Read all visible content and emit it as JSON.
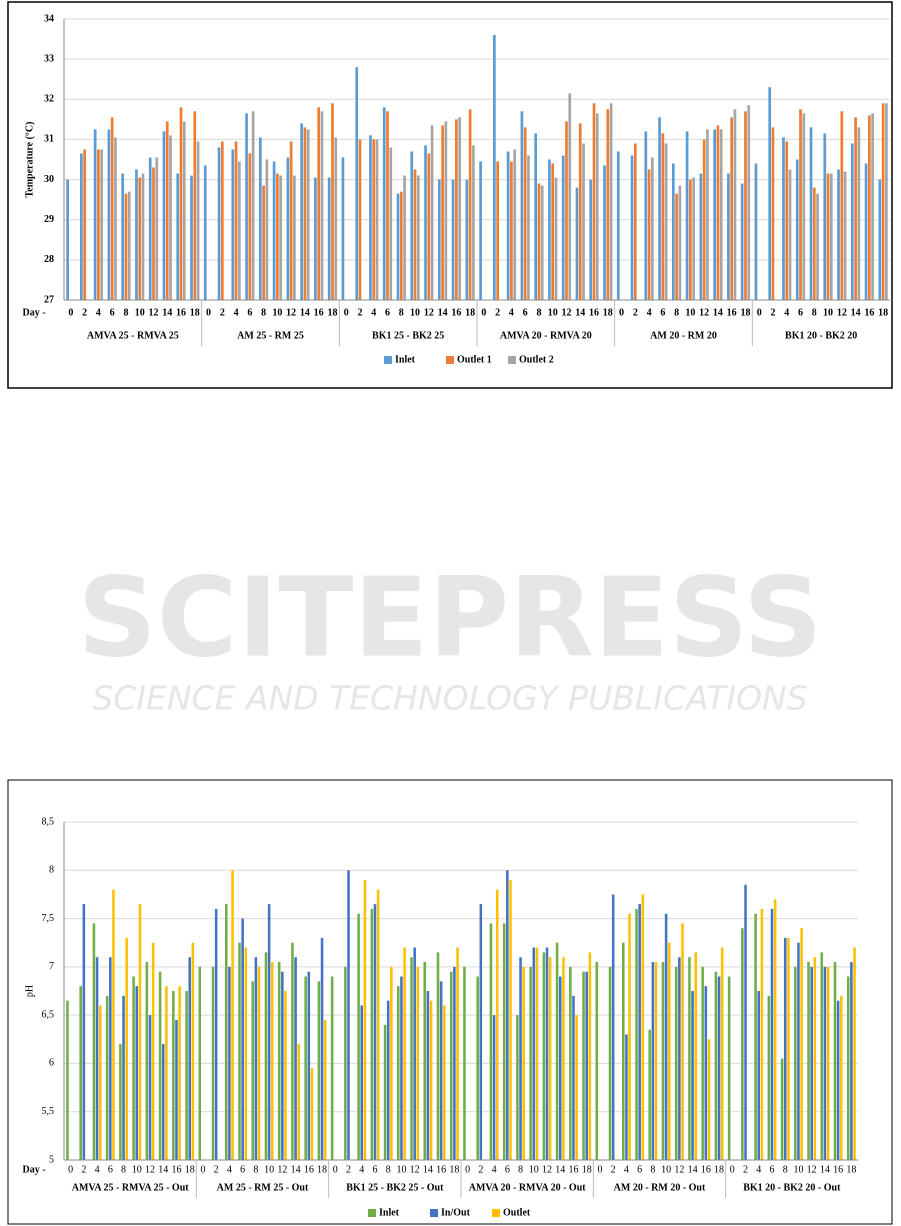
{
  "chart_data": [
    {
      "type": "bar",
      "ylabel": "Temperature (°C)",
      "x_prefix": "Day -",
      "categories": [
        "0",
        "2",
        "4",
        "6",
        "8",
        "10",
        "12",
        "14",
        "16",
        "18",
        "0",
        "2",
        "4",
        "6",
        "8",
        "10",
        "12",
        "14",
        "16",
        "18",
        "0",
        "2",
        "4",
        "6",
        "8",
        "10",
        "12",
        "14",
        "16",
        "18",
        "0",
        "2",
        "4",
        "6",
        "8",
        "10",
        "12",
        "14",
        "16",
        "18",
        "0",
        "2",
        "4",
        "6",
        "8",
        "10",
        "12",
        "14",
        "16",
        "18",
        "0",
        "2",
        "4",
        "6",
        "8",
        "10",
        "12",
        "14",
        "16",
        "18"
      ],
      "groups": [
        "AMVA 25 - RMVA 25",
        "AM 25 - RM 25",
        "BK1 25 - BK2 25",
        "AMVA 20 - RMVA 20",
        "AM 20 - RM 20",
        "BK1 20 - BK2 20"
      ],
      "series": [
        {
          "name": "Inlet",
          "color": "#5b9bd5",
          "values": [
            30.0,
            30.65,
            31.25,
            31.25,
            30.15,
            30.25,
            30.55,
            31.2,
            30.15,
            30.1,
            30.35,
            30.8,
            30.75,
            31.65,
            31.05,
            30.45,
            30.55,
            31.4,
            30.05,
            30.05,
            30.55,
            32.8,
            31.1,
            31.8,
            29.65,
            30.7,
            30.85,
            30.0,
            30.0,
            30.0,
            30.45,
            33.6,
            30.7,
            31.7,
            31.15,
            30.5,
            30.6,
            29.8,
            30.0,
            30.35,
            30.7,
            30.6,
            31.2,
            31.55,
            30.4,
            31.2,
            30.15,
            31.25,
            30.15,
            29.9,
            30.4,
            32.3,
            31.05,
            30.5,
            31.3,
            31.15,
            30.25,
            30.9,
            30.4,
            30.0
          ]
        },
        {
          "name": "Outlet 1",
          "color": "#ed7d31",
          "values": [
            null,
            30.75,
            30.75,
            31.55,
            29.65,
            30.05,
            30.3,
            31.45,
            31.8,
            31.7,
            null,
            30.95,
            30.95,
            30.65,
            29.85,
            30.15,
            30.95,
            31.3,
            31.8,
            31.9,
            null,
            31.0,
            31.0,
            31.7,
            29.7,
            30.25,
            30.65,
            31.35,
            31.5,
            31.75,
            null,
            30.45,
            30.45,
            31.3,
            29.9,
            30.4,
            31.45,
            31.4,
            31.9,
            31.75,
            null,
            30.9,
            30.25,
            31.15,
            29.65,
            30.0,
            31.0,
            31.35,
            31.55,
            31.7,
            null,
            31.3,
            30.95,
            31.75,
            29.8,
            30.15,
            31.7,
            31.55,
            31.6,
            31.9
          ]
        },
        {
          "name": "Outlet 2",
          "color": "#a5a5a5",
          "values": [
            null,
            null,
            30.75,
            31.05,
            29.7,
            30.15,
            30.55,
            31.1,
            31.45,
            30.95,
            null,
            null,
            30.45,
            31.7,
            30.5,
            30.1,
            30.1,
            31.25,
            31.7,
            31.05,
            null,
            null,
            31.0,
            30.8,
            30.1,
            30.1,
            31.35,
            31.45,
            31.55,
            30.85,
            null,
            null,
            30.75,
            30.6,
            29.85,
            30.05,
            32.15,
            30.9,
            31.65,
            31.9,
            null,
            null,
            30.55,
            30.9,
            29.85,
            30.05,
            31.25,
            31.25,
            31.75,
            31.85,
            null,
            null,
            30.25,
            31.65,
            29.65,
            30.15,
            30.2,
            31.3,
            31.65,
            31.9
          ]
        }
      ],
      "ylim": [
        27,
        34
      ],
      "yticks": [
        27,
        28,
        29,
        30,
        31,
        32,
        33,
        34
      ],
      "grid": true,
      "legend": "bottom"
    },
    {
      "type": "bar",
      "ylabel": "pH",
      "x_prefix": "Day -",
      "categories": [
        "0",
        "2",
        "4",
        "6",
        "8",
        "10",
        "12",
        "14",
        "16",
        "18",
        "0",
        "2",
        "4",
        "6",
        "8",
        "10",
        "12",
        "14",
        "16",
        "18",
        "0",
        "2",
        "4",
        "6",
        "8",
        "10",
        "12",
        "14",
        "16",
        "18",
        "0",
        "2",
        "4",
        "6",
        "8",
        "10",
        "12",
        "14",
        "16",
        "18",
        "0",
        "2",
        "4",
        "6",
        "8",
        "10",
        "12",
        "14",
        "16",
        "18",
        "0",
        "2",
        "4",
        "6",
        "8",
        "10",
        "12",
        "14",
        "16",
        "18"
      ],
      "groups": [
        "AMVA 25 - RMVA 25 - Out",
        "AM 25 - RM 25 - Out",
        "BK1 25 - BK2 25 - Out",
        "AMVA 20 - RMVA 20 - Out",
        "AM 20 - RM 20 - Out",
        "BK1 20 - BK2 20 - Out"
      ],
      "series": [
        {
          "name": "Inlet",
          "color": "#70ad47",
          "values": [
            6.65,
            6.8,
            7.45,
            6.7,
            6.2,
            6.9,
            7.05,
            6.95,
            6.75,
            6.75,
            7.0,
            7.0,
            7.65,
            7.25,
            6.85,
            7.15,
            7.05,
            7.25,
            6.9,
            6.85,
            6.9,
            7.0,
            7.55,
            7.6,
            6.4,
            6.8,
            7.1,
            7.05,
            7.15,
            6.95,
            7.0,
            6.9,
            7.45,
            7.45,
            6.5,
            7.0,
            7.15,
            7.25,
            7.0,
            6.95,
            7.05,
            7.0,
            7.25,
            7.6,
            6.35,
            7.05,
            7.0,
            7.1,
            7.0,
            6.95,
            6.9,
            7.4,
            7.55,
            6.7,
            6.05,
            7.0,
            7.05,
            7.15,
            7.05,
            6.9
          ]
        },
        {
          "name": "In/Out",
          "color": "#4472c4",
          "values": [
            null,
            7.65,
            7.1,
            7.1,
            6.7,
            6.8,
            6.5,
            6.2,
            6.45,
            7.1,
            null,
            7.6,
            7.0,
            7.5,
            7.1,
            7.65,
            6.95,
            7.1,
            6.95,
            7.3,
            null,
            8.0,
            6.6,
            7.65,
            6.65,
            6.9,
            7.2,
            6.75,
            6.85,
            7.0,
            null,
            7.65,
            6.5,
            8.0,
            7.1,
            7.2,
            7.2,
            6.9,
            6.7,
            6.95,
            null,
            7.75,
            6.3,
            7.65,
            7.05,
            7.55,
            7.1,
            6.75,
            6.8,
            6.9,
            null,
            7.85,
            6.75,
            7.6,
            7.3,
            7.25,
            7.0,
            7.0,
            6.65,
            7.05
          ]
        },
        {
          "name": "Outlet",
          "color": "#ffc000",
          "values": [
            null,
            null,
            6.6,
            7.8,
            7.3,
            7.65,
            7.25,
            6.8,
            6.8,
            7.25,
            null,
            null,
            8.0,
            7.2,
            7.0,
            7.05,
            6.75,
            6.2,
            5.95,
            6.45,
            null,
            null,
            7.9,
            7.8,
            7.0,
            7.2,
            7.0,
            6.65,
            6.6,
            7.2,
            null,
            null,
            7.8,
            7.9,
            7.0,
            7.2,
            7.1,
            7.1,
            6.5,
            7.15,
            null,
            null,
            7.55,
            7.75,
            7.05,
            7.25,
            7.45,
            7.15,
            6.25,
            7.2,
            null,
            null,
            7.6,
            7.7,
            7.3,
            7.4,
            7.1,
            7.0,
            6.7,
            7.2
          ]
        }
      ],
      "ylim": [
        5,
        8.5
      ],
      "yticks": [
        5,
        {
          "value": 5.5,
          "label": "5,5"
        },
        6,
        {
          "value": 6.5,
          "label": "6,5"
        },
        7,
        {
          "value": 7.5,
          "label": "7,5"
        },
        8,
        {
          "value": 8.5,
          "label": "8,5"
        }
      ],
      "grid": true,
      "legend": "bottom"
    }
  ],
  "watermark": {
    "title": "SCITEPRESS",
    "subtitle": "SCIENCE AND TECHNOLOGY PUBLICATIONS"
  }
}
